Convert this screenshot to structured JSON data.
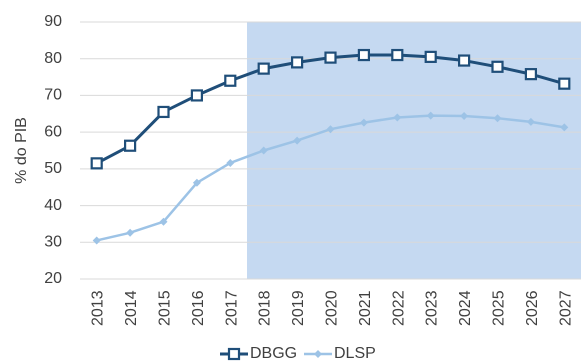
{
  "chart_data": {
    "type": "line",
    "title": "",
    "xlabel": "",
    "ylabel": "% do PIB",
    "ylim": [
      20,
      90
    ],
    "yticks": [
      "20",
      "30",
      "40",
      "50",
      "60",
      "70",
      "80",
      "90"
    ],
    "categories": [
      "2013",
      "2014",
      "2015",
      "2016",
      "2017",
      "2018",
      "2019",
      "2020",
      "2021",
      "2022",
      "2023",
      "2024",
      "2025",
      "2026",
      "2027"
    ],
    "shaded_region": {
      "from": "2018",
      "to": "2027",
      "color": "#c5d9f1"
    },
    "grid": "horizontal",
    "legend_position": "bottom",
    "series": [
      {
        "name": "DBGG",
        "color": "#1f4e79",
        "marker": "square",
        "values": [
          51.5,
          56.3,
          65.5,
          70.0,
          74.0,
          77.3,
          79.0,
          80.3,
          81.0,
          81.0,
          80.5,
          79.5,
          77.8,
          75.8,
          73.2
        ]
      },
      {
        "name": "DLSP",
        "color": "#9dc3e6",
        "marker": "diamond",
        "values": [
          30.5,
          32.6,
          35.6,
          46.2,
          51.6,
          55.0,
          57.7,
          60.8,
          62.6,
          64.0,
          64.5,
          64.4,
          63.8,
          62.8,
          61.3
        ]
      }
    ]
  }
}
